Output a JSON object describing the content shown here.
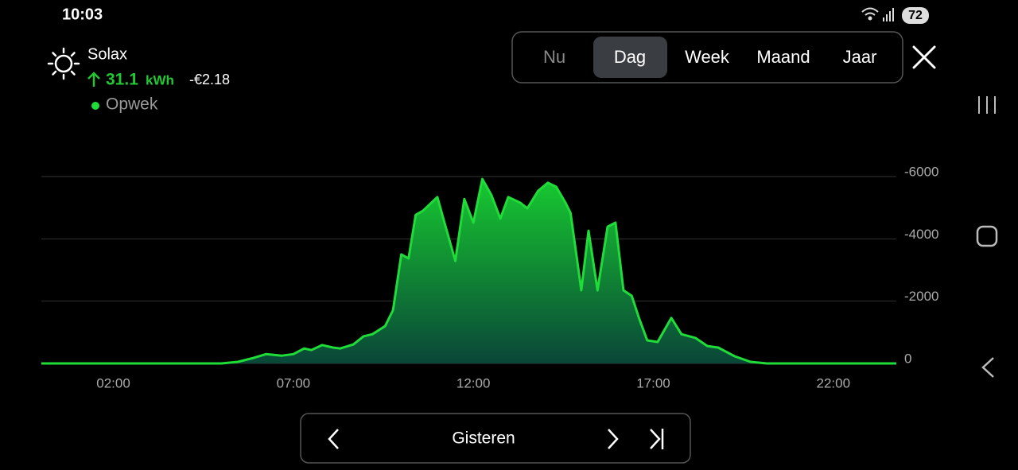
{
  "status_bar": {
    "time": "10:03",
    "battery": "72"
  },
  "header": {
    "title": "Solax",
    "energy": "31.1",
    "energy_unit": "kWh",
    "cost": "-€2.18"
  },
  "tabs": {
    "items": [
      "Nu",
      "Dag",
      "Week",
      "Maand",
      "Jaar"
    ],
    "selected": 1
  },
  "navigation": {
    "label": "Gisteren"
  },
  "chart_data": {
    "type": "area",
    "x": [
      0,
      5.0,
      5.46,
      5.9,
      6.24,
      6.68,
      7.0,
      7.3,
      7.5,
      7.8,
      8.1,
      8.3,
      8.67,
      8.95,
      9.2,
      9.55,
      9.77,
      10.0,
      10.2,
      10.4,
      10.6,
      11.0,
      11.2,
      11.5,
      11.75,
      12.0,
      12.25,
      12.5,
      12.75,
      12.97,
      13.3,
      13.5,
      13.8,
      14.07,
      14.3,
      14.56,
      14.7,
      15.0,
      15.2,
      15.45,
      15.73,
      15.95,
      16.17,
      16.4,
      16.6,
      16.83,
      17.12,
      17.5,
      17.78,
      18.17,
      18.5,
      18.8,
      19.26,
      19.7,
      20.15,
      23.75
    ],
    "series": [
      {
        "name": "Opwek",
        "color": "#1fdc38",
        "values": [
          0,
          0,
          -50,
          -180,
          -300,
          -250,
          -300,
          -480,
          -430,
          -590,
          -510,
          -480,
          -610,
          -870,
          -940,
          -1200,
          -1710,
          -3500,
          -3370,
          -4770,
          -4900,
          -5340,
          -4520,
          -3290,
          -5280,
          -4520,
          -5920,
          -5410,
          -4650,
          -5340,
          -5160,
          -4980,
          -5540,
          -5800,
          -5670,
          -5160,
          -4830,
          -2350,
          -4260,
          -2350,
          -4390,
          -4520,
          -2350,
          -2170,
          -1460,
          -740,
          -690,
          -1460,
          -940,
          -820,
          -560,
          -510,
          -230,
          -50,
          0,
          0
        ]
      }
    ],
    "xlim": [
      0,
      23.75
    ],
    "xticks": [
      {
        "value": 2,
        "label": "02:00"
      },
      {
        "value": 7,
        "label": "07:00"
      },
      {
        "value": 12,
        "label": "12:00"
      },
      {
        "value": 17,
        "label": "17:00"
      },
      {
        "value": 22,
        "label": "22:00"
      }
    ],
    "ylim": [
      0,
      -6000
    ],
    "yticks": [
      -6000,
      -4000,
      -2000,
      0
    ],
    "grid": true
  }
}
